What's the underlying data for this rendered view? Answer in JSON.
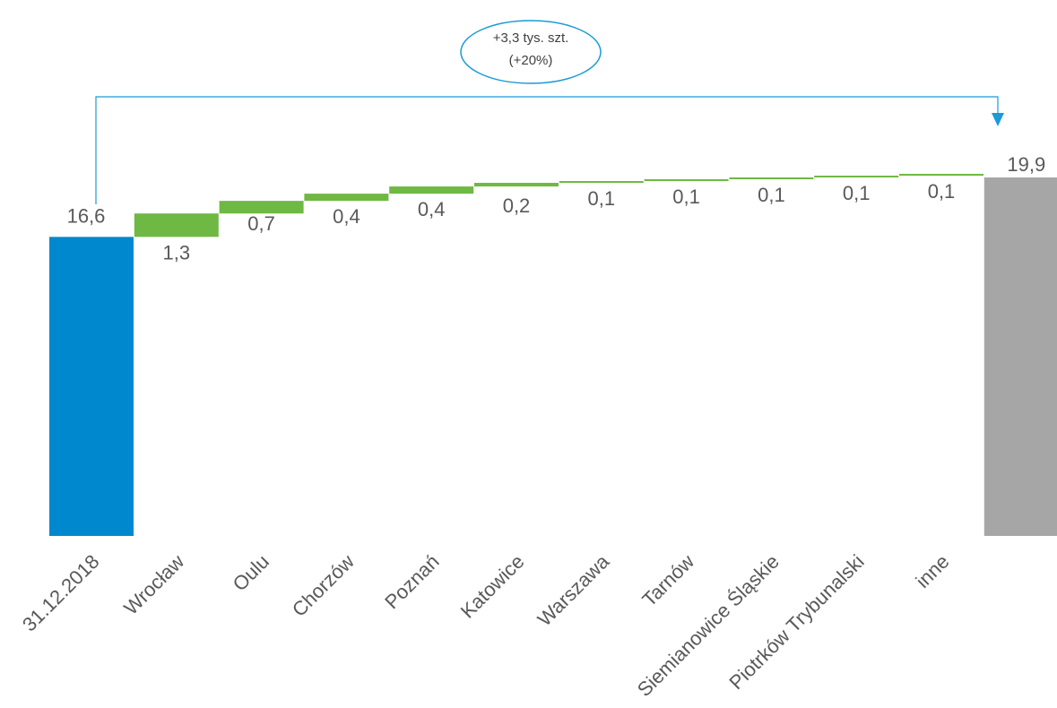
{
  "chart_data": {
    "type": "bar",
    "subtype": "waterfall",
    "start": {
      "label": "31.12.2018",
      "value": 16.6,
      "value_label": "16,6"
    },
    "increments": [
      {
        "label": "Wrocław",
        "value": 1.3,
        "value_label": "1,3"
      },
      {
        "label": "Oulu",
        "value": 0.7,
        "value_label": "0,7"
      },
      {
        "label": "Chorzów",
        "value": 0.4,
        "value_label": "0,4"
      },
      {
        "label": "Poznań",
        "value": 0.4,
        "value_label": "0,4"
      },
      {
        "label": "Katowice",
        "value": 0.2,
        "value_label": "0,2"
      },
      {
        "label": "Warszawa",
        "value": 0.1,
        "value_label": "0,1"
      },
      {
        "label": "Tarnów",
        "value": 0.1,
        "value_label": "0,1"
      },
      {
        "label": "Siemianowice Śląskie",
        "value": 0.1,
        "value_label": "0,1"
      },
      {
        "label": "Piotrków Trybunalski",
        "value": 0.1,
        "value_label": "0,1"
      },
      {
        "label": "inne",
        "value": 0.1,
        "value_label": "0,1"
      }
    ],
    "end": {
      "label": "",
      "value": 19.9,
      "value_label": "19,9"
    },
    "ylim": [
      0,
      19.9
    ],
    "annotation": {
      "line1": "+3,3 tys. szt.",
      "line2": "(+20%)"
    },
    "colors": {
      "start": "#0088CE",
      "increase": "#70B844",
      "end": "#A6A6A6",
      "annotation": "#1A9AD6"
    }
  }
}
